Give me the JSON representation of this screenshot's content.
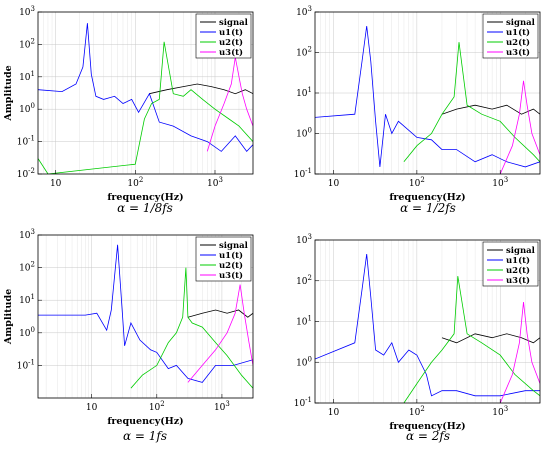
{
  "chart_data": [
    {
      "type": "line",
      "caption": "α = 1/8fs",
      "xlabel": "frequency(Hz)",
      "ylabel": "Amplitude",
      "xscale": "log",
      "yscale": "log",
      "xlim": [
        6,
        3000
      ],
      "ylim": [
        0.01,
        1000
      ],
      "xticks": [
        {
          "v": 10,
          "t": "10"
        },
        {
          "v": 100,
          "t": "10^2"
        },
        {
          "v": 1000,
          "t": "10^3"
        }
      ],
      "yticks": [
        {
          "v": 0.01,
          "t": "10^-2"
        },
        {
          "v": 0.1,
          "t": "10^-1"
        },
        {
          "v": 1,
          "t": "10^0"
        },
        {
          "v": 10,
          "t": "10^1"
        },
        {
          "v": 100,
          "t": "10^2"
        },
        {
          "v": 1000,
          "t": "10^3"
        }
      ],
      "grid": true,
      "legend": "top-right",
      "series": [
        {
          "name": "signal",
          "color": "#000000",
          "x": [
            150,
            250,
            400,
            600,
            900,
            1300,
            1800,
            2400,
            3000
          ],
          "y": [
            3,
            4,
            5,
            6,
            5,
            4,
            3,
            4,
            3
          ]
        },
        {
          "name": "u1(t)",
          "color": "#0000ff",
          "x": [
            6,
            12,
            18,
            22,
            25,
            28,
            32,
            40,
            55,
            70,
            90,
            110,
            150,
            200,
            300,
            500,
            800,
            1200,
            1800,
            2500,
            3000
          ],
          "y": [
            4,
            3.5,
            6,
            20,
            450,
            12,
            2.5,
            2,
            2.5,
            1.5,
            2,
            0.8,
            3,
            0.4,
            0.3,
            0.15,
            0.1,
            0.05,
            0.15,
            0.05,
            0.08
          ]
        },
        {
          "name": "u2(t)",
          "color": "#00cc00",
          "x": [
            6,
            8,
            100,
            130,
            160,
            200,
            230,
            300,
            400,
            500,
            700,
            1000,
            1500,
            2000,
            3000
          ],
          "y": [
            0.03,
            0.01,
            0.02,
            0.5,
            1.5,
            2,
            120,
            3,
            2.5,
            4,
            2,
            1,
            0.5,
            0.3,
            0.1
          ]
        },
        {
          "name": "u3(t)",
          "color": "#ff00ff",
          "x": [
            800,
            1000,
            1300,
            1600,
            1800,
            2000,
            2200,
            2500,
            3000
          ],
          "y": [
            0.05,
            0.3,
            1.5,
            6,
            40,
            10,
            3,
            1,
            0.3
          ]
        }
      ]
    },
    {
      "type": "line",
      "caption": "α = 1/2fs",
      "xlabel": "frequency(Hz)",
      "ylabel": "",
      "xscale": "log",
      "yscale": "log",
      "xlim": [
        6,
        3000
      ],
      "ylim": [
        0.1,
        1000
      ],
      "xticks": [
        {
          "v": 10,
          "t": "10"
        },
        {
          "v": 100,
          "t": "10^2"
        },
        {
          "v": 1000,
          "t": "10^3"
        }
      ],
      "yticks": [
        {
          "v": 0.1,
          "t": "10^-1"
        },
        {
          "v": 1,
          "t": "10^0"
        },
        {
          "v": 10,
          "t": "10^1"
        },
        {
          "v": 100,
          "t": "10^2"
        },
        {
          "v": 1000,
          "t": "10^3"
        }
      ],
      "grid": true,
      "legend": "top-right",
      "series": [
        {
          "name": "signal",
          "color": "#000000",
          "x": [
            200,
            300,
            500,
            800,
            1200,
            1800,
            2500,
            3000
          ],
          "y": [
            3,
            4,
            5,
            4,
            5,
            3,
            4,
            3
          ]
        },
        {
          "name": "u1(t)",
          "color": "#0000ff",
          "x": [
            6,
            18,
            22,
            25,
            28,
            32,
            36,
            42,
            50,
            60,
            80,
            100,
            150,
            200,
            300,
            500,
            800,
            1200,
            2000,
            3000
          ],
          "y": [
            2.5,
            3,
            60,
            450,
            60,
            2,
            0.15,
            3,
            1,
            2,
            1.2,
            0.8,
            0.7,
            0.4,
            0.4,
            0.2,
            0.3,
            0.2,
            0.15,
            0.2
          ]
        },
        {
          "name": "u2(t)",
          "color": "#00cc00",
          "x": [
            70,
            100,
            150,
            200,
            280,
            320,
            400,
            600,
            1000,
            1500,
            2500,
            3000
          ],
          "y": [
            0.2,
            0.5,
            1,
            3,
            8,
            180,
            5,
            3,
            2,
            0.8,
            0.3,
            0.2
          ]
        },
        {
          "name": "u3(t)",
          "color": "#ff00ff",
          "x": [
            1000,
            1400,
            1700,
            1900,
            2100,
            2400,
            3000
          ],
          "y": [
            0.1,
            0.5,
            3,
            20,
            5,
            1,
            0.3
          ]
        }
      ]
    },
    {
      "type": "line",
      "caption": "α = 1fs",
      "xlabel": "frequency(Hz)",
      "ylabel": "Amplitude",
      "xscale": "log",
      "yscale": "log",
      "xlim": [
        1.5,
        3000
      ],
      "ylim": [
        0.01,
        1000
      ],
      "xticks": [
        {
          "v": 10,
          "t": "10"
        },
        {
          "v": 100,
          "t": "10^2"
        },
        {
          "v": 1000,
          "t": "10^3"
        }
      ],
      "yticks": [
        {
          "v": 0.1,
          "t": "10^-1"
        },
        {
          "v": 1,
          "t": "10^0"
        },
        {
          "v": 10,
          "t": "10^1"
        },
        {
          "v": 100,
          "t": "10^2"
        },
        {
          "v": 1000,
          "t": "10^3"
        }
      ],
      "grid": true,
      "legend": "top-right",
      "series": [
        {
          "name": "signal",
          "color": "#000000",
          "x": [
            300,
            500,
            800,
            1200,
            1800,
            2500,
            3000
          ],
          "y": [
            3,
            4,
            5,
            4,
            5,
            3,
            4
          ]
        },
        {
          "name": "u1(t)",
          "color": "#0000ff",
          "x": [
            1.5,
            8,
            12,
            17,
            20,
            25,
            28,
            32,
            40,
            55,
            80,
            100,
            150,
            200,
            300,
            500,
            800,
            1500,
            3000
          ],
          "y": [
            3.5,
            3.5,
            4,
            1.2,
            5,
            500,
            20,
            0.4,
            2,
            0.6,
            0.3,
            0.25,
            0.08,
            0.1,
            0.04,
            0.03,
            0.1,
            0.1,
            0.15
          ]
        },
        {
          "name": "u2(t)",
          "color": "#00cc00",
          "x": [
            40,
            60,
            100,
            150,
            200,
            250,
            280,
            300,
            350,
            500,
            800,
            1200,
            2000,
            3000
          ],
          "y": [
            0.02,
            0.05,
            0.1,
            0.5,
            1,
            3,
            100,
            3,
            2,
            1.5,
            0.5,
            0.2,
            0.05,
            0.02
          ]
        },
        {
          "name": "u3(t)",
          "color": "#ff00ff",
          "x": [
            300,
            500,
            800,
            1200,
            1600,
            1900,
            2200,
            2600,
            3000
          ],
          "y": [
            0.03,
            0.1,
            0.3,
            1,
            4,
            30,
            4,
            0.5,
            0.1
          ]
        }
      ]
    },
    {
      "type": "line",
      "caption": "α = 2fs",
      "xlabel": "frequency(Hz)",
      "ylabel": "",
      "xscale": "log",
      "yscale": "log",
      "xlim": [
        6,
        3000
      ],
      "ylim": [
        0.1,
        1000
      ],
      "xticks": [
        {
          "v": 10,
          "t": "10"
        },
        {
          "v": 100,
          "t": "10^2"
        },
        {
          "v": 1000,
          "t": "10^3"
        }
      ],
      "yticks": [
        {
          "v": 0.1,
          "t": "10^-1"
        },
        {
          "v": 1,
          "t": "10^0"
        },
        {
          "v": 10,
          "t": "10^1"
        },
        {
          "v": 100,
          "t": "10^2"
        },
        {
          "v": 1000,
          "t": "10^3"
        }
      ],
      "grid": true,
      "legend": "top-right",
      "series": [
        {
          "name": "signal",
          "color": "#000000",
          "x": [
            200,
            300,
            500,
            800,
            1200,
            1800,
            2500,
            3000
          ],
          "y": [
            4,
            3,
            5,
            4,
            5,
            4,
            3,
            4
          ]
        },
        {
          "name": "u1(t)",
          "color": "#0000ff",
          "x": [
            6,
            18,
            22,
            25,
            28,
            32,
            40,
            50,
            60,
            80,
            100,
            130,
            150,
            200,
            300,
            500,
            1000,
            2000,
            3000
          ],
          "y": [
            1.2,
            3,
            60,
            450,
            40,
            2,
            1.5,
            3,
            1,
            2,
            1.5,
            0.5,
            0.15,
            0.2,
            0.2,
            0.15,
            0.15,
            0.2,
            0.2
          ]
        },
        {
          "name": "u2(t)",
          "color": "#00cc00",
          "x": [
            70,
            100,
            150,
            200,
            280,
            310,
            400,
            600,
            1000,
            1500,
            2500,
            3000
          ],
          "y": [
            0.1,
            0.3,
            1,
            2,
            5,
            130,
            5,
            3,
            1.5,
            0.5,
            0.2,
            0.15
          ]
        },
        {
          "name": "u3(t)",
          "color": "#ff00ff",
          "x": [
            1000,
            1400,
            1700,
            1900,
            2100,
            2400,
            3000
          ],
          "y": [
            0.1,
            0.5,
            3,
            30,
            5,
            1,
            0.3
          ]
        }
      ]
    }
  ]
}
